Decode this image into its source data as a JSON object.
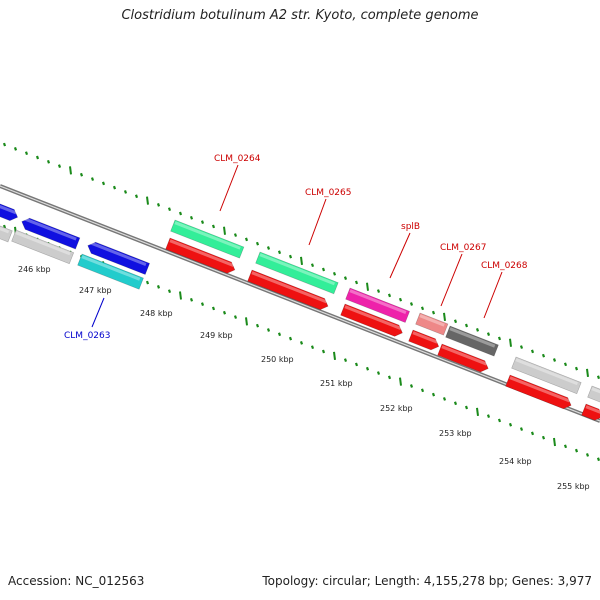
{
  "title": "Clostridium botulinum A2 str. Kyoto, complete genome",
  "footer": {
    "accession": "Accession: NC_012563",
    "summary": "Topology: circular; Length: 4,155,278 bp; Genes: 3,977"
  },
  "colors": {
    "backbone": "#777777",
    "tick": "#1a8a1a",
    "forward_label": "#cc0000",
    "reverse_label": "#0000cc"
  },
  "ruler": [
    "246 kbp",
    "247 kbp",
    "248 kbp",
    "249 kbp",
    "250 kbp",
    "251 kbp",
    "252 kbp",
    "253 kbp",
    "254 kbp",
    "255 kbp"
  ],
  "labels": [
    {
      "text": "CLM_0263",
      "color": "#0000cc"
    },
    {
      "text": "CLM_0264",
      "color": "#cc0000"
    },
    {
      "text": "CLM_0265",
      "color": "#cc0000"
    },
    {
      "text": "splB",
      "color": "#cc0000"
    },
    {
      "text": "CLM_0267",
      "color": "#cc0000"
    },
    {
      "text": "CLM_0268",
      "color": "#cc0000"
    }
  ],
  "genes": [
    {
      "name": "blue-gene-left-1",
      "color": "#1010e0"
    },
    {
      "name": "blue-gene-left-2",
      "color": "#1010e0"
    },
    {
      "name": "blue-gene-left-3",
      "color": "#1010e0"
    },
    {
      "name": "grey-gene-left",
      "color": "#cccccc"
    },
    {
      "name": "grey-gene-left-2",
      "color": "#cccccc"
    },
    {
      "name": "clm0263-gene",
      "color": "#22cccc"
    },
    {
      "name": "clm0264-gene",
      "color": "#33ee99"
    },
    {
      "name": "clm0264-cds",
      "color": "#ee1111"
    },
    {
      "name": "clm0265-gene",
      "color": "#33ee99"
    },
    {
      "name": "clm0265-cds",
      "color": "#ee1111"
    },
    {
      "name": "splb-gene",
      "color": "#ee22aa"
    },
    {
      "name": "splb-cds",
      "color": "#ee1111"
    },
    {
      "name": "clm0267-gene",
      "color": "#ee8888"
    },
    {
      "name": "clm0267-cds",
      "color": "#ee1111"
    },
    {
      "name": "clm0268-gene",
      "color": "#666666"
    },
    {
      "name": "clm0268-cds",
      "color": "#ee1111"
    },
    {
      "name": "grey-gene-right",
      "color": "#cccccc"
    },
    {
      "name": "grey-gene-right-2",
      "color": "#cccccc"
    },
    {
      "name": "red-cds-right",
      "color": "#ee1111"
    },
    {
      "name": "red-cds-right-2",
      "color": "#ee1111"
    }
  ]
}
